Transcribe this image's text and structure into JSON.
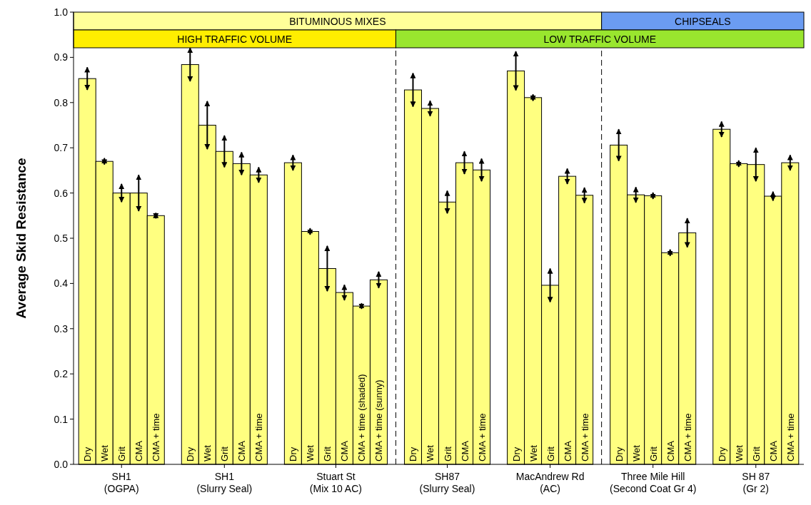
{
  "chart_data": {
    "type": "bar",
    "ylabel": "Average Skid Resistance",
    "categories": [
      "Dry",
      "Wet",
      "Grit",
      "CMA",
      "CMA + time",
      null,
      "Dry",
      "Wet",
      "Grit",
      "CMA",
      "CMA + time",
      null,
      "Dry",
      "Wet",
      "Grit",
      "CMA",
      "CMA + time (shaded)",
      "CMA + time (sunny)",
      null,
      "Dry",
      "Wet",
      "Grit",
      "CMA",
      "CMA + time",
      null,
      "Dry",
      "Wet",
      "Grit",
      "CMA",
      "CMA + time",
      null,
      "Dry",
      "Wet",
      "Grit",
      "CMA",
      "CMA + time",
      null,
      "Dry",
      "Wet",
      "Grit",
      "CMA",
      "CMA + time"
    ],
    "values": [
      0.853,
      0.67,
      0.6,
      0.6,
      0.55,
      null,
      0.884,
      0.75,
      0.692,
      0.665,
      0.64,
      null,
      0.667,
      0.515,
      0.433,
      0.38,
      0.35,
      0.408,
      null,
      0.828,
      0.787,
      0.58,
      0.667,
      0.651,
      null,
      0.87,
      0.811,
      0.396,
      0.637,
      0.595,
      null,
      0.706,
      0.596,
      0.594,
      0.468,
      0.512,
      null,
      0.741,
      0.665,
      0.663,
      0.593,
      0.667
    ],
    "errors": [
      0.025,
      0.007,
      0.02,
      0.04,
      0.006,
      null,
      0.037,
      0.053,
      0.035,
      0.025,
      0.017,
      null,
      0.017,
      0.007,
      0.05,
      0.017,
      0.006,
      0.018,
      null,
      0.037,
      0.017,
      0.025,
      0.025,
      0.025,
      null,
      0.043,
      0.007,
      0.037,
      0.017,
      0.017,
      null,
      0.035,
      0.017,
      0.007,
      0.007,
      0.032,
      null,
      0.017,
      0.007,
      0.037,
      0.01,
      0.017
    ],
    "color": "#ffff80",
    "ylim": [
      0,
      1
    ],
    "yticks": [
      {
        "value": 0,
        "label": "0.0"
      },
      {
        "value": 0.1,
        "label": "0.1"
      },
      {
        "value": 0.2,
        "label": "0.2"
      },
      {
        "value": 0.3,
        "label": "0.3"
      },
      {
        "value": 0.4,
        "label": "0.4"
      },
      {
        "value": 0.5,
        "label": "0.5"
      },
      {
        "value": 0.6,
        "label": "0.6"
      },
      {
        "value": 0.7,
        "label": "0.7"
      },
      {
        "value": 0.8,
        "label": "0.8"
      },
      {
        "value": 0.9,
        "label": "0.9"
      },
      {
        "value": 1,
        "label": "1.0"
      }
    ],
    "annotations": [
      "SH1\n(OGPA)",
      "SH1\n(Slurry Seal)",
      "Stuart St\n(Mix 10 AC)",
      "SH87\n(Slurry Seal)",
      "MacAndrew Rd\n(AC)",
      "Three Mile Hill\n(Second Coat Gr 4)",
      "SH 87\n(Gr 2)",
      "BITUMINOUS MIXES",
      "CHIPSEALS",
      "HIGH TRAFFIC VOLUME",
      "LOW TRAFFIC VOLUME"
    ]
  }
}
